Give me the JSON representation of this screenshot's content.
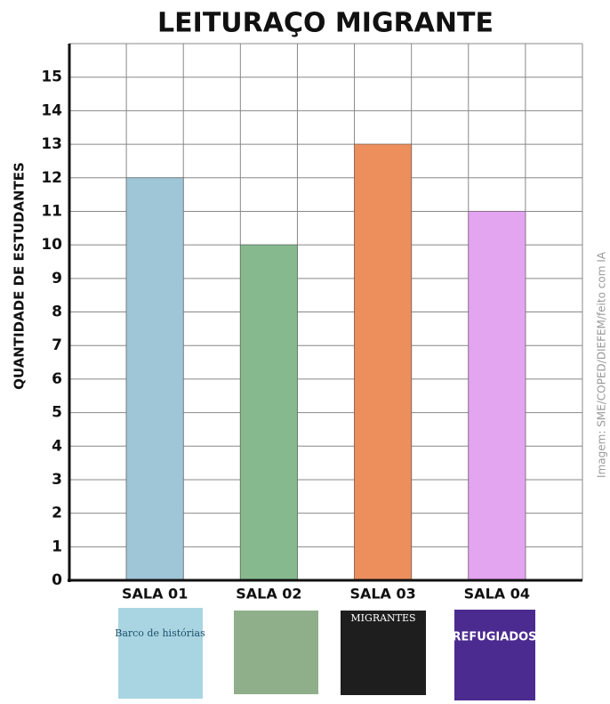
{
  "chart_data": {
    "type": "bar",
    "title": "LEITURAÇO MIGRANTE",
    "y_label": "QUANTIDADE DE ESTUDANTES",
    "categories": [
      "SALA 01",
      "SALA 02",
      "SALA 03",
      "SALA 04"
    ],
    "values": [
      12,
      10,
      13,
      11
    ],
    "colors": [
      "#9fc6d6",
      "#86ba8e",
      "#ed8f5d",
      "#e3a4f0"
    ],
    "book_titles": [
      "Barco de histórias",
      null,
      "MIGRANTES",
      "REFUGIADOS"
    ],
    "ylim": [
      0,
      16
    ],
    "yticks": [
      0,
      1,
      2,
      3,
      4,
      5,
      6,
      7,
      8,
      9,
      10,
      11,
      12,
      13,
      14,
      15
    ],
    "grid": true,
    "credit": "Imagem: SME/COPED/DIEFEM/feito com IA"
  }
}
